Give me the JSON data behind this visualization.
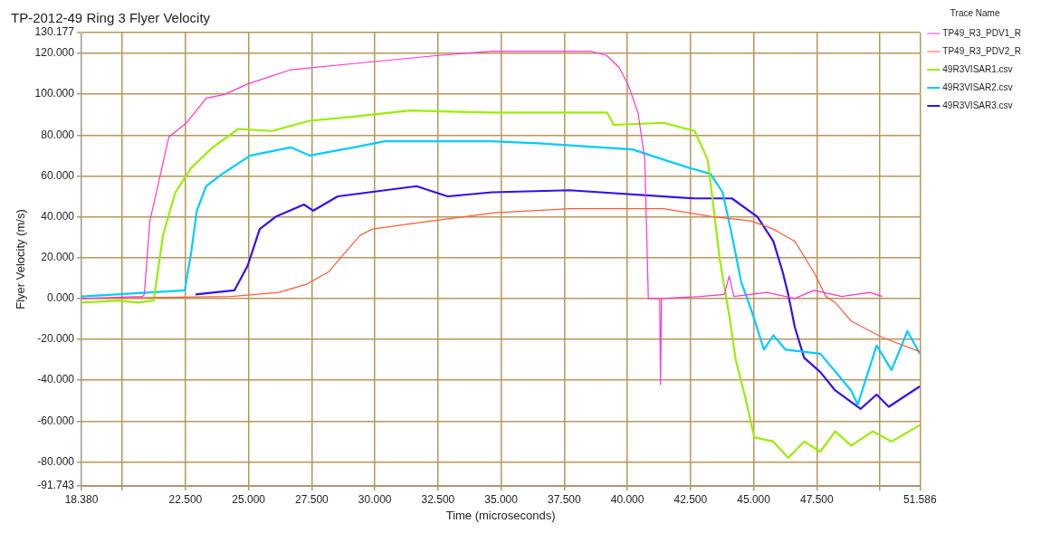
{
  "chart_data": {
    "type": "line",
    "title": "TP-2012-49 Ring 3 Flyer Velocity",
    "xlabel": "Time (microseconds)",
    "ylabel": "Flyer Velocity (m/s)",
    "legend_title": "Trace Name",
    "legend": "right",
    "grid": true,
    "marker": "none",
    "line_style": "solid",
    "xlim": [
      18.38,
      51.586
    ],
    "xticks": [
      {
        "value": 18.38,
        "label": "18.380"
      },
      {
        "value": 20,
        "label": null
      },
      {
        "value": 22.5,
        "label": "22.500"
      },
      {
        "value": 25,
        "label": "25.000"
      },
      {
        "value": 27.5,
        "label": "27.500"
      },
      {
        "value": 30,
        "label": "30.000"
      },
      {
        "value": 32.5,
        "label": "32.500"
      },
      {
        "value": 35,
        "label": "35.000"
      },
      {
        "value": 37.5,
        "label": "37.500"
      },
      {
        "value": 40,
        "label": "40.000"
      },
      {
        "value": 42.5,
        "label": "42.500"
      },
      {
        "value": 45,
        "label": "45.000"
      },
      {
        "value": 47.5,
        "label": "47.500"
      },
      {
        "value": 50,
        "label": null
      },
      {
        "value": 51.586,
        "label": "51.586"
      }
    ],
    "ylim": [
      -91.743,
      130.177
    ],
    "yticks": [
      {
        "value": -91.743,
        "label": "-91.743"
      },
      {
        "value": -80,
        "label": "-80.000"
      },
      {
        "value": -60,
        "label": "-60.000"
      },
      {
        "value": -40,
        "label": "-40.000"
      },
      {
        "value": -20,
        "label": "-20.000"
      },
      {
        "value": 0,
        "label": "0.000"
      },
      {
        "value": 20,
        "label": "20.000"
      },
      {
        "value": 40,
        "label": "40.000"
      },
      {
        "value": 60,
        "label": "60.000"
      },
      {
        "value": 80,
        "label": "80.000"
      },
      {
        "value": 100,
        "label": "100.000"
      },
      {
        "value": 120,
        "label": "120.000"
      },
      {
        "value": 130.177,
        "label": "130.177"
      }
    ],
    "series": [
      {
        "name": "TP49_R3_PDV1_R",
        "color": "#ff33cc",
        "x": [
          18.38,
          20.8,
          20.87,
          21.09,
          21.35,
          21.73,
          21.84,
          22.54,
          23.32,
          24.07,
          24.96,
          26.67,
          29.16,
          32.51,
          34.63,
          38.57,
          39.18,
          39.68,
          40.05,
          40.42,
          40.69,
          40.83,
          41.28,
          41.31,
          41.35,
          42.92,
          43.84,
          44.03,
          44.22,
          45.52,
          46.63,
          47.38,
          48.49,
          49.61,
          50.09
        ],
        "values": [
          0,
          1,
          2,
          38,
          52,
          73,
          79,
          86,
          98,
          100,
          105,
          112,
          115,
          119,
          121,
          121,
          119,
          113,
          104,
          91,
          68,
          0,
          0,
          -42,
          0,
          1,
          2,
          11,
          1,
          3,
          0,
          4,
          1,
          3,
          1
        ]
      },
      {
        "name": "TP49_R3_PDV2_R",
        "color": "#ff5a36",
        "x": [
          18.38,
          24.33,
          26.19,
          27.3,
          28.16,
          28.79,
          29.42,
          29.9,
          31.65,
          34.74,
          37.71,
          41.43,
          43.4,
          44.89,
          45.78,
          46.63,
          47.38,
          47.86,
          48.23,
          48.86,
          50.09,
          51.58
        ],
        "values": [
          0,
          1,
          3,
          7,
          13,
          22,
          31,
          34,
          37,
          42,
          44,
          44,
          40,
          38,
          34,
          28,
          13,
          1,
          -2,
          -11,
          -19,
          -26
        ]
      },
      {
        "name": "49R3VISAR1.csv",
        "color": "#99ee00",
        "x": [
          18.38,
          19.87,
          20.6,
          21.24,
          21.61,
          22.1,
          22.73,
          23.58,
          24.59,
          25.93,
          27.41,
          29.16,
          31.39,
          34.63,
          36.48,
          39.2,
          39.46,
          41.43,
          42.66,
          43.18,
          43.4,
          43.66,
          44.03,
          44.29,
          44.66,
          45.03,
          45.78,
          46.37,
          47.0,
          47.64,
          48.23,
          48.86,
          49.72,
          50.46,
          51.58
        ],
        "values": [
          -2,
          -1,
          -2,
          -1,
          31,
          52,
          64,
          74,
          83,
          82,
          87,
          89,
          92,
          91,
          91,
          91,
          85,
          86,
          82,
          68,
          46,
          19,
          -8,
          -30,
          -48,
          -68,
          -70,
          -78,
          -70,
          -75,
          -65,
          -72,
          -65,
          -70,
          -62
        ]
      },
      {
        "name": "49R3VISAR2.csv",
        "color": "#00ccff",
        "x": [
          18.38,
          22.47,
          22.73,
          22.95,
          23.32,
          23.96,
          25.07,
          26.67,
          27.41,
          29.16,
          30.39,
          34.63,
          36.48,
          40.2,
          41.43,
          42.43,
          43.29,
          43.77,
          44.14,
          44.51,
          44.89,
          45.41,
          45.78,
          46.26,
          47.64,
          48.86,
          49.12,
          49.87,
          50.46,
          51.09,
          51.58
        ],
        "values": [
          1,
          4,
          23,
          43,
          55,
          61,
          70,
          74,
          70,
          74,
          77,
          77,
          76,
          73,
          68,
          64,
          61,
          52,
          31,
          8,
          -5,
          -25,
          -18,
          -25,
          -27,
          -45,
          -52,
          -23,
          -35,
          -16,
          -27
        ]
      },
      {
        "name": "49R3VISAR3.csv",
        "color": "#3311ee",
        "x": [
          22.9,
          24.44,
          24.96,
          25.44,
          26.07,
          27.19,
          27.56,
          28.53,
          31.65,
          32.88,
          34.63,
          37.71,
          42.66,
          44.14,
          45.15,
          45.78,
          46.15,
          46.37,
          46.63,
          47.0,
          47.64,
          48.23,
          49.24,
          49.87,
          50.35,
          51.58
        ],
        "values": [
          2,
          4,
          16,
          34,
          40,
          46,
          43,
          50,
          55,
          50,
          52,
          53,
          49,
          49,
          40,
          28,
          13,
          2,
          -14,
          -29,
          -36,
          -45,
          -54,
          -47,
          -53,
          -43
        ]
      }
    ]
  }
}
